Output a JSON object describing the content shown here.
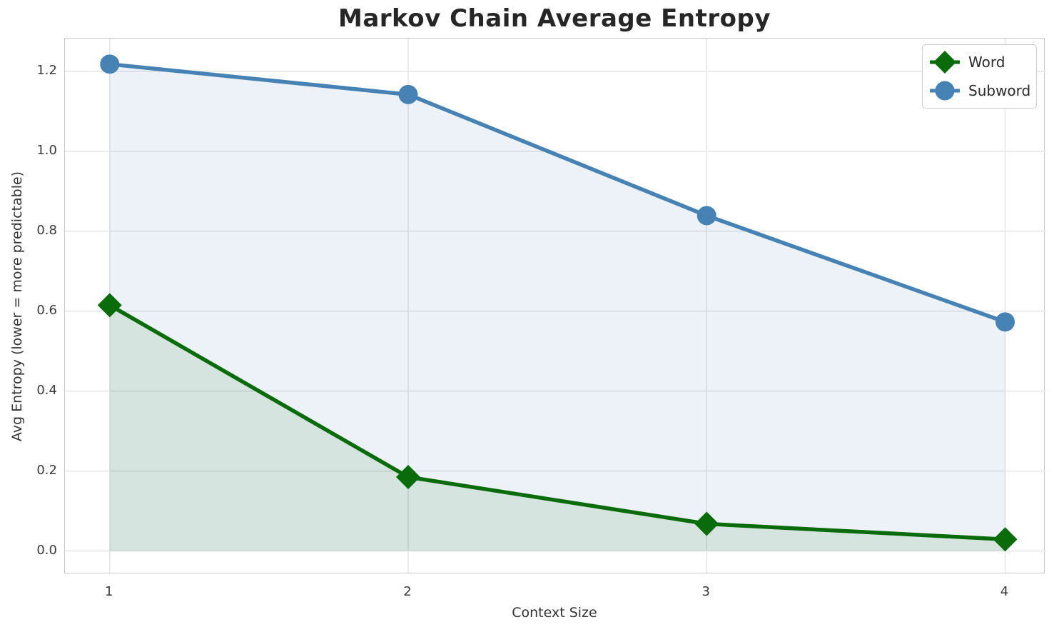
{
  "chart_data": {
    "type": "line",
    "title": "Markov Chain Average Entropy",
    "xlabel": "Context Size",
    "ylabel": "Avg Entropy (lower = more predictable)",
    "x": [
      1,
      2,
      3,
      4
    ],
    "series": [
      {
        "name": "Word",
        "marker": "diamond",
        "color": "#0a6b0a",
        "fill_color": "rgba(10,107,10,0.10)",
        "values": [
          0.615,
          0.185,
          0.068,
          0.029
        ]
      },
      {
        "name": "Subword",
        "marker": "circle",
        "color": "#4682b4",
        "fill_color": "rgba(70,130,180,0.10)",
        "values": [
          1.218,
          1.142,
          0.839,
          0.573
        ]
      }
    ],
    "xlim": [
      0.85,
      4.135
    ],
    "ylim": [
      -0.058,
      1.282
    ],
    "xticks": [
      "1",
      "2",
      "3",
      "4"
    ],
    "xtick_values": [
      1,
      2,
      3,
      4
    ],
    "yticks": [
      "0.0",
      "0.2",
      "0.4",
      "0.6",
      "0.8",
      "1.0",
      "1.2"
    ],
    "ytick_values": [
      0,
      0.2,
      0.4,
      0.6,
      0.8,
      1.0,
      1.2
    ],
    "grid": true,
    "grid_color": "#e4e4e4",
    "spine_color": "#c9c9c9",
    "legend_position": "upper right",
    "fill_area": "each series filled down to y=0 with translucent series color"
  }
}
